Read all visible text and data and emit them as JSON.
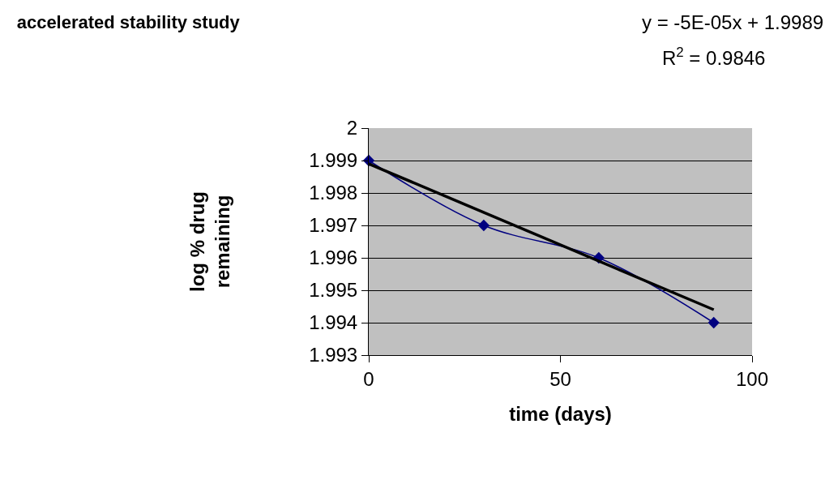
{
  "chart_data": {
    "type": "line",
    "title": "accelerated stability study",
    "xlabel": "time (days)",
    "ylabel": "log % drug\nremaining",
    "annotations": [
      "y = -5E-05x + 1.9989",
      "R$^{2}$ = 0.9846"
    ],
    "series": [
      {
        "color": "#000080",
        "x": [
          0,
          30,
          60,
          90
        ],
        "values": [
          1.999,
          1.997,
          1.996,
          1.994
        ],
        "marker": "diamond"
      },
      {
        "color": "#000000",
        "x": [
          0,
          90
        ],
        "values": [
          1.9989,
          1.9944
        ],
        "marker": "none"
      }
    ],
    "xlim": [
      0,
      100
    ],
    "xticks": [
      0,
      50,
      100
    ],
    "ylim": [
      1.993,
      2
    ],
    "yticks": [
      1.993,
      1.994,
      1.995,
      1.996,
      1.997,
      1.998,
      1.999,
      2
    ],
    "grid": "y",
    "line_style": "solid"
  }
}
